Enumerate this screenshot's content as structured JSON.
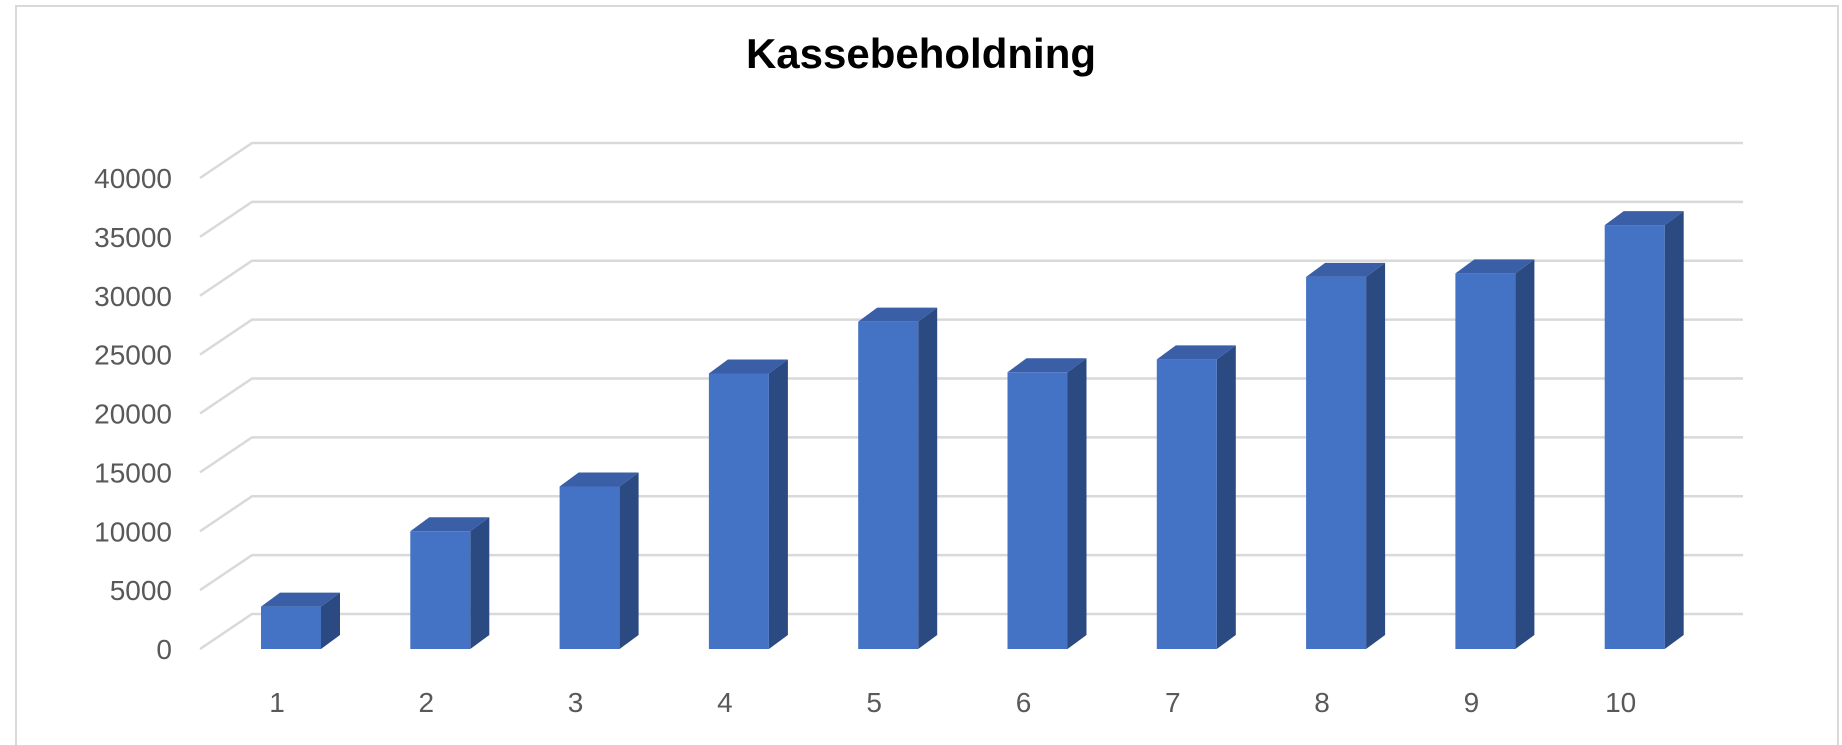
{
  "chart_data": {
    "type": "bar",
    "title": "Kassebeholdning",
    "xlabel": "",
    "ylabel": "",
    "categories": [
      "1",
      "2",
      "3",
      "4",
      "5",
      "6",
      "7",
      "8",
      "9",
      "10"
    ],
    "values": [
      3600,
      10000,
      13800,
      23400,
      27800,
      23500,
      24600,
      31600,
      31900,
      36000
    ],
    "ylim": [
      0,
      40000
    ],
    "yticks": [
      "0",
      "5000",
      "10000",
      "15000",
      "20000",
      "25000",
      "30000",
      "35000",
      "40000"
    ],
    "grid": true,
    "legend": "none",
    "style": "3d-column",
    "colors": {
      "bar_front": "#4472c4",
      "bar_top": "#3a5fa6",
      "bar_side": "#2c4a82",
      "gridline": "#d9d9d9",
      "tick_text": "#595959"
    }
  }
}
